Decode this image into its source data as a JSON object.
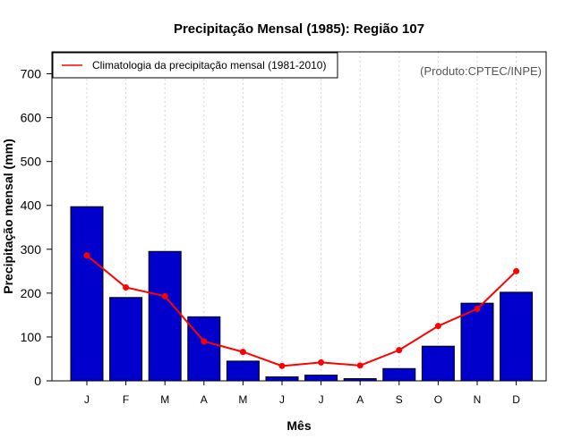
{
  "chart_data": {
    "type": "bar",
    "title": "Precipitação Mensal (1985): Região 107",
    "xlabel": "Mês",
    "ylabel": "Precipitação mensal (mm)",
    "ylim": [
      0,
      750
    ],
    "yticks": [
      0,
      100,
      200,
      300,
      400,
      500,
      600,
      700
    ],
    "categories": [
      "J",
      "F",
      "M",
      "A",
      "M",
      "J",
      "J",
      "A",
      "S",
      "O",
      "N",
      "D"
    ],
    "grid": "vertical dotted",
    "series": [
      {
        "name": "Precipitação mensal (1985)",
        "type": "bar",
        "color": "#0000CD",
        "values": [
          397,
          190,
          295,
          146,
          45,
          9,
          13,
          5,
          28,
          79,
          177,
          202
        ]
      },
      {
        "name": "Climatologia da precipitação mensal (1981-2010)",
        "type": "line",
        "color": "#FF0000",
        "values": [
          286,
          213,
          193,
          90,
          66,
          34,
          42,
          35,
          70,
          125,
          164,
          250
        ]
      }
    ],
    "legend": {
      "position": "top-left",
      "entries": [
        "Climatologia da precipitação mensal (1981-2010)"
      ]
    },
    "annotation": "(Produto:CPTEC/INPE)"
  }
}
